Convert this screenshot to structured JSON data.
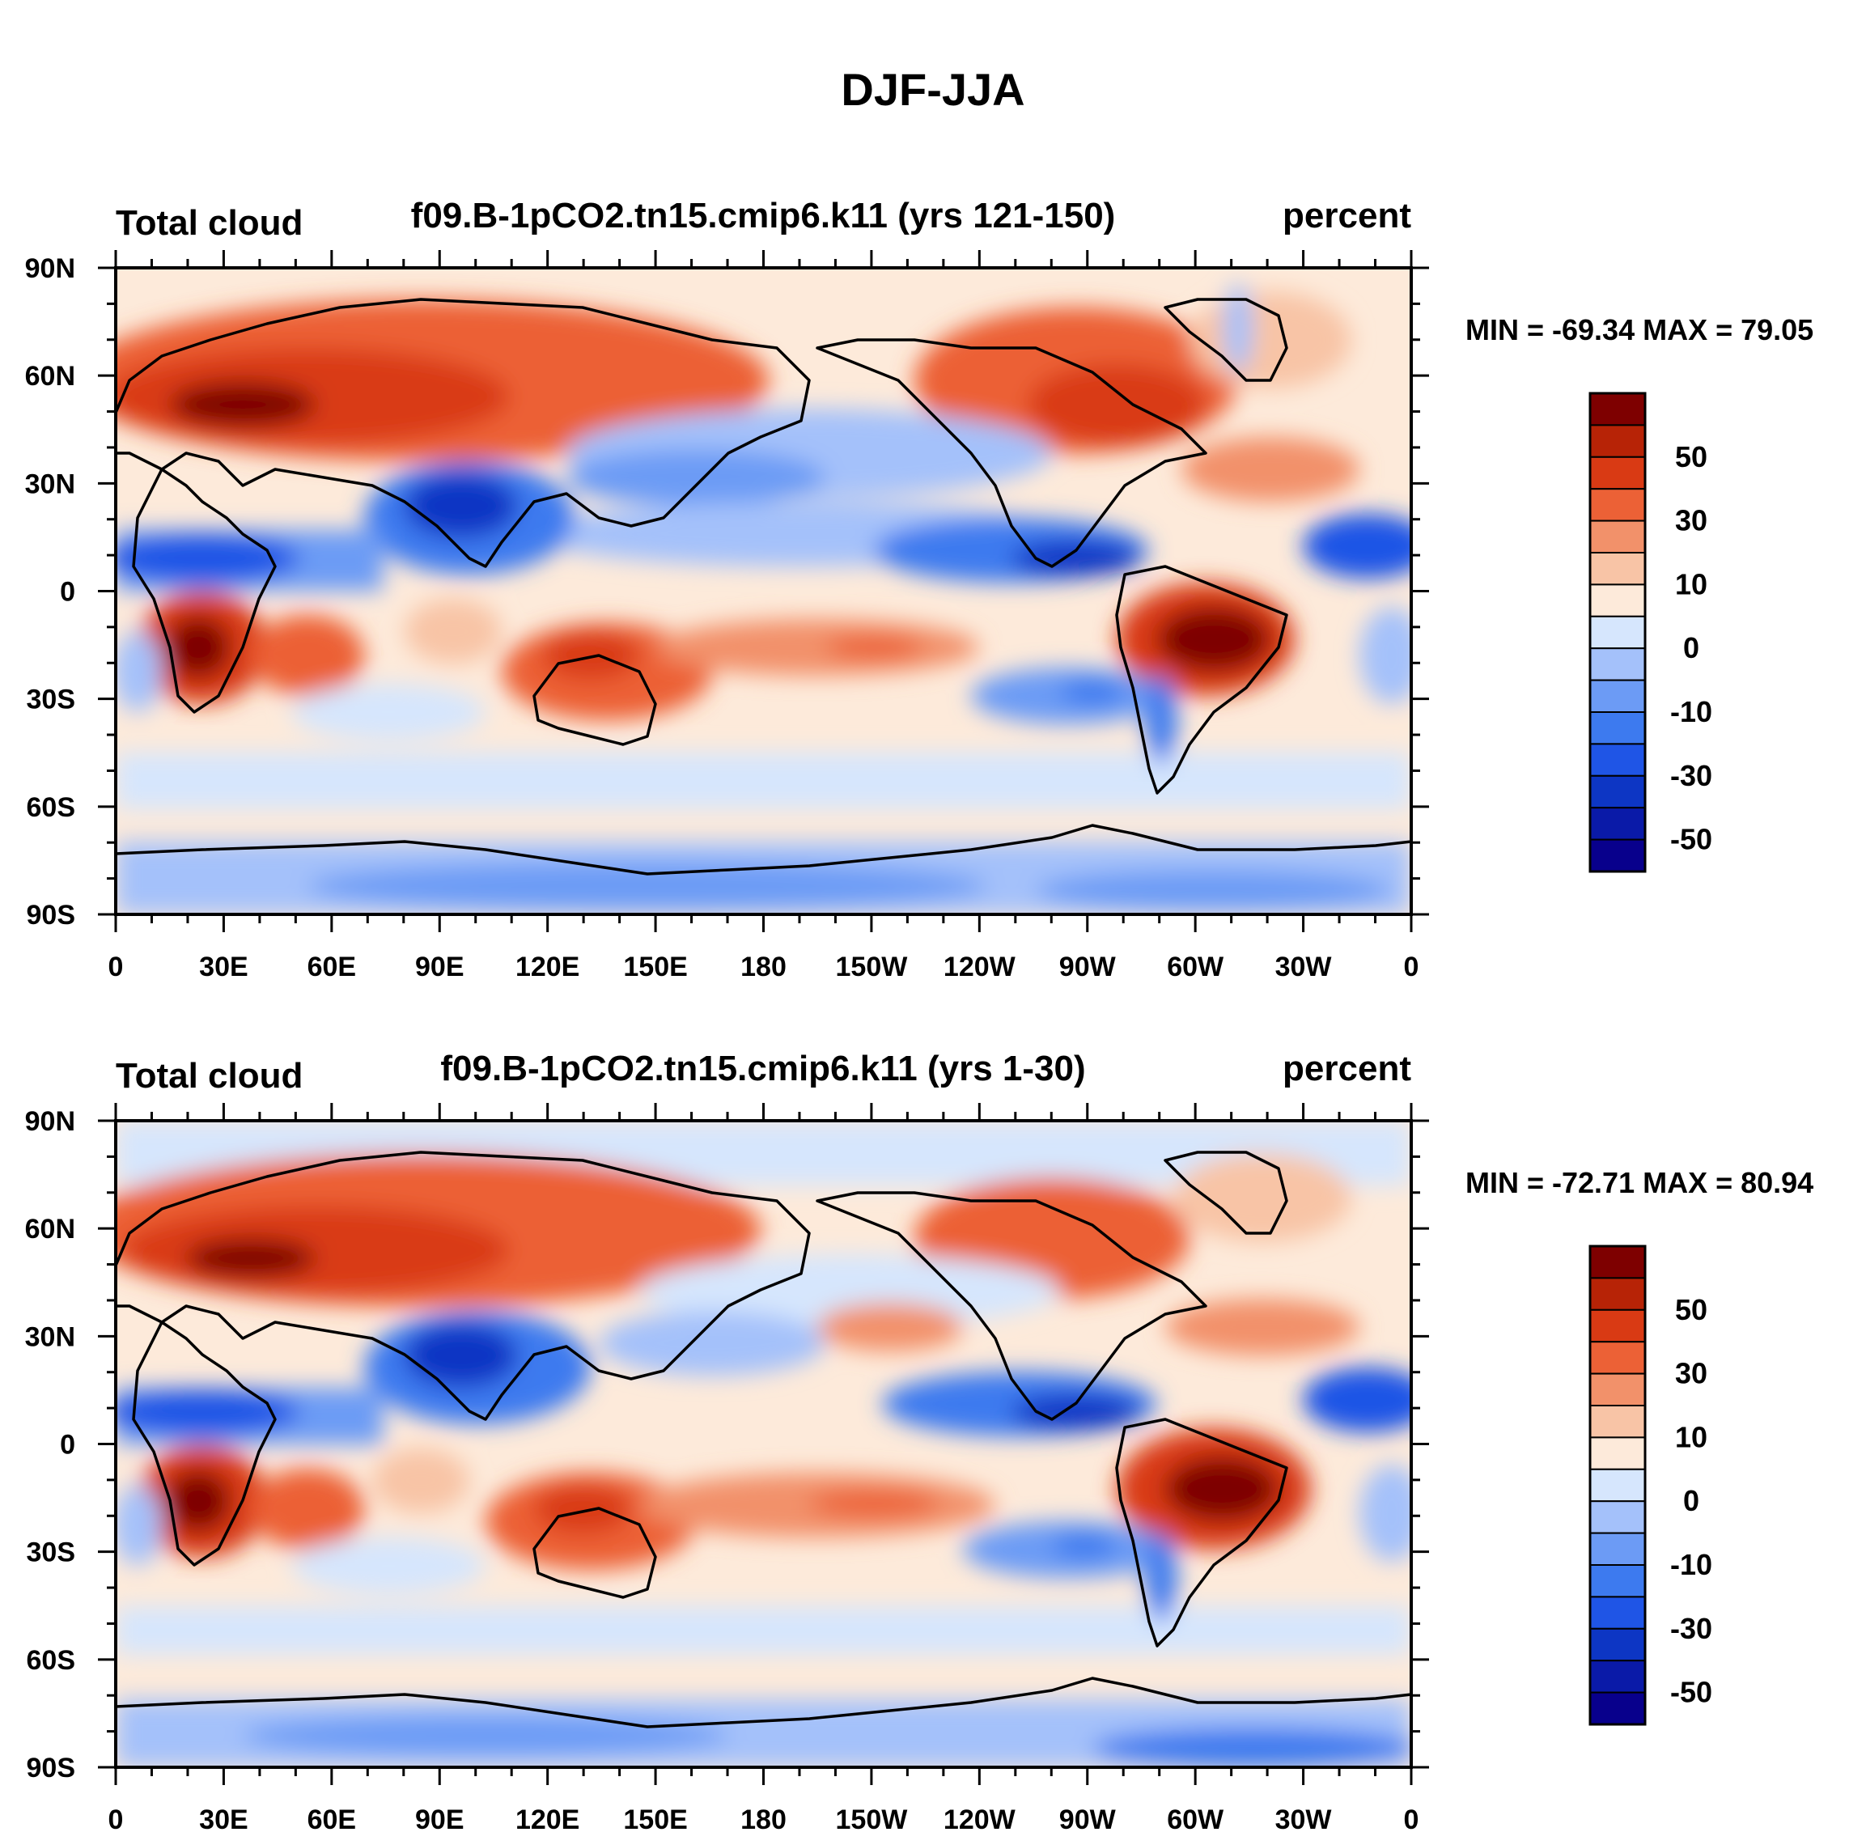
{
  "figure": {
    "title": "DJF-JJA"
  },
  "colors": {
    "levels": [
      "#08008c",
      "#0a1aa8",
      "#0d36c4",
      "#1f55e6",
      "#3d7aef",
      "#6c9bf5",
      "#a4c1fa",
      "#d6e6fd",
      "#fdeada",
      "#f8c4a6",
      "#f2916a",
      "#ec6136",
      "#d93a14",
      "#b72306",
      "#7e0000"
    ],
    "land_outline": "#000000"
  },
  "colorbar": {
    "labels": [
      "50",
      "30",
      "10",
      "0",
      "-10",
      "-30",
      "-50"
    ]
  },
  "axes": {
    "y_labels": [
      "90N",
      "60N",
      "30N",
      "0",
      "30S",
      "60S",
      "90S"
    ],
    "x_labels": [
      "0",
      "30E",
      "60E",
      "90E",
      "120E",
      "150E",
      "180",
      "150W",
      "120W",
      "90W",
      "60W",
      "30W",
      "0"
    ]
  },
  "panels": [
    {
      "left_label": "Total cloud",
      "center_label": "f09.B-1pCO2.tn15.cmip6.k11 (yrs 121-150)",
      "right_label": "percent",
      "stats": "MIN = -69.34 MAX =  79.05",
      "data_min": -69.34,
      "data_max": 79.05
    },
    {
      "left_label": "Total cloud",
      "center_label": "f09.B-1pCO2.tn15.cmip6.k11 (yrs 1-30)",
      "right_label": "percent",
      "stats": "MIN = -72.71 MAX =  80.94",
      "data_min": -72.71,
      "data_max": 80.94
    }
  ]
}
